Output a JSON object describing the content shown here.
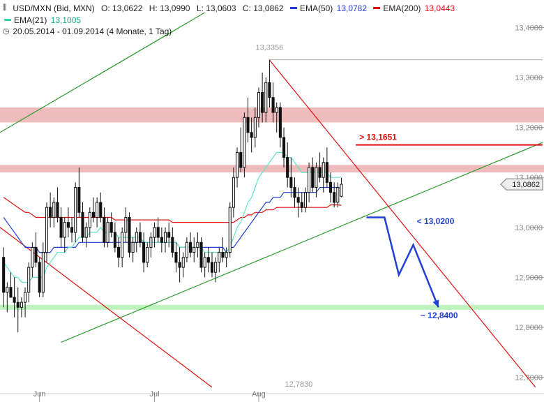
{
  "header": {
    "symbol": "USD/MXN (Bid, MXN)",
    "ohlc": {
      "o": "O: 13,0622",
      "h": "H: 13,0990",
      "l": "L: 13,0603",
      "c": "C: 13,0862"
    },
    "ema50": {
      "label": "EMA(50)",
      "value": "13,0782",
      "color": "#1f3fd6"
    },
    "ema200": {
      "label": "EMA(200)",
      "value": "13,0443",
      "color": "#e01010"
    },
    "ema21": {
      "label": "EMA(21)",
      "value": "13,1005",
      "color": "#33d6b0"
    },
    "range": "20.05.2014 - 01.09.2014 (4 Monate, 1 Tag)",
    "icons": [
      "candlestick-icon",
      "clock-icon"
    ]
  },
  "chart_data": {
    "type": "candlestick",
    "x_labels": [
      {
        "label": "Jun",
        "index": 10
      },
      {
        "label": "Jul",
        "index": 42
      },
      {
        "label": "Aug",
        "index": 71
      }
    ],
    "y_ticks": [
      "13,4000",
      "13,3000",
      "13,2000",
      "13,1000",
      "13,0000",
      "12,9000",
      "12,8000",
      "12,7000"
    ],
    "y_tick_values": [
      13.4,
      13.3,
      13.2,
      13.1,
      13.0,
      12.9,
      12.8,
      12.7
    ],
    "ylim": [
      12.67,
      13.43
    ],
    "xlim": [
      -1,
      150
    ],
    "candles": [
      [
        12.94,
        12.96,
        12.84,
        12.87
      ],
      [
        12.87,
        12.89,
        12.83,
        12.88
      ],
      [
        12.88,
        12.91,
        12.86,
        12.86
      ],
      [
        12.86,
        12.9,
        12.82,
        12.85
      ],
      [
        12.85,
        12.88,
        12.79,
        12.84
      ],
      [
        12.84,
        12.86,
        12.82,
        12.85
      ],
      [
        12.85,
        12.88,
        12.82,
        12.87
      ],
      [
        12.87,
        12.93,
        12.85,
        12.92
      ],
      [
        12.92,
        12.97,
        12.9,
        12.96
      ],
      [
        12.96,
        12.99,
        12.92,
        12.93
      ],
      [
        12.93,
        12.94,
        12.86,
        12.87
      ],
      [
        12.87,
        12.97,
        12.86,
        12.95
      ],
      [
        12.95,
        13.05,
        12.93,
        13.04
      ],
      [
        13.04,
        13.07,
        13.0,
        13.02
      ],
      [
        13.02,
        13.06,
        13.0,
        13.05
      ],
      [
        13.05,
        13.08,
        13.01,
        13.02
      ],
      [
        13.02,
        13.04,
        12.96,
        12.98
      ],
      [
        12.98,
        13.02,
        12.95,
        13.01
      ],
      [
        13.01,
        13.04,
        12.98,
        13.0
      ],
      [
        13.0,
        13.02,
        12.97,
        12.99
      ],
      [
        12.99,
        13.09,
        12.97,
        13.08
      ],
      [
        13.08,
        13.12,
        13.02,
        13.03
      ],
      [
        13.03,
        13.05,
        12.97,
        12.98
      ],
      [
        12.98,
        13.01,
        12.96,
        13.0
      ],
      [
        13.0,
        13.04,
        12.98,
        13.03
      ],
      [
        13.03,
        13.06,
        13.01,
        13.02
      ],
      [
        13.02,
        13.06,
        13.0,
        13.05
      ],
      [
        13.05,
        13.07,
        13.01,
        13.02
      ],
      [
        13.02,
        13.04,
        12.96,
        12.97
      ],
      [
        12.97,
        13.02,
        12.96,
        13.01
      ],
      [
        13.01,
        13.03,
        12.98,
        12.99
      ],
      [
        12.99,
        13.01,
        12.95,
        12.96
      ],
      [
        12.96,
        12.98,
        12.92,
        12.94
      ],
      [
        12.94,
        13.0,
        12.92,
        12.99
      ],
      [
        12.99,
        13.04,
        12.97,
        13.02
      ],
      [
        13.02,
        13.03,
        12.94,
        12.95
      ],
      [
        12.95,
        12.98,
        12.93,
        12.97
      ],
      [
        12.97,
        13.0,
        12.95,
        12.99
      ],
      [
        12.99,
        13.01,
        12.96,
        12.97
      ],
      [
        12.97,
        12.99,
        12.91,
        12.93
      ],
      [
        12.93,
        12.97,
        12.92,
        12.96
      ],
      [
        12.96,
        12.99,
        12.94,
        12.98
      ],
      [
        12.98,
        13.01,
        12.96,
        13.0
      ],
      [
        13.0,
        13.02,
        12.97,
        12.98
      ],
      [
        12.98,
        13.0,
        12.95,
        12.97
      ],
      [
        12.97,
        13.0,
        12.95,
        12.99
      ],
      [
        12.99,
        13.01,
        12.96,
        12.98
      ],
      [
        12.98,
        13.0,
        12.94,
        12.95
      ],
      [
        12.95,
        12.97,
        12.91,
        12.93
      ],
      [
        12.93,
        12.96,
        12.89,
        12.92
      ],
      [
        12.92,
        12.95,
        12.9,
        12.94
      ],
      [
        12.94,
        12.98,
        12.93,
        12.97
      ],
      [
        12.97,
        12.99,
        12.94,
        12.95
      ],
      [
        12.95,
        12.98,
        12.93,
        12.96
      ],
      [
        12.96,
        12.99,
        12.94,
        12.97
      ],
      [
        12.97,
        12.98,
        12.91,
        12.92
      ],
      [
        12.92,
        12.95,
        12.9,
        12.94
      ],
      [
        12.94,
        12.96,
        12.91,
        12.93
      ],
      [
        12.93,
        12.95,
        12.9,
        12.91
      ],
      [
        12.91,
        12.94,
        12.89,
        12.93
      ],
      [
        12.93,
        12.96,
        12.91,
        12.95
      ],
      [
        12.95,
        12.98,
        12.93,
        12.94
      ],
      [
        12.94,
        12.96,
        12.92,
        12.95
      ],
      [
        12.95,
        13.05,
        12.94,
        13.04
      ],
      [
        13.04,
        13.12,
        13.02,
        13.1
      ],
      [
        13.1,
        13.16,
        13.08,
        13.15
      ],
      [
        13.15,
        13.2,
        13.11,
        13.12
      ],
      [
        13.12,
        13.23,
        13.1,
        13.22
      ],
      [
        13.22,
        13.26,
        13.17,
        13.19
      ],
      [
        13.19,
        13.22,
        13.15,
        13.18
      ],
      [
        13.18,
        13.24,
        13.16,
        13.22
      ],
      [
        13.22,
        13.28,
        13.2,
        13.27
      ],
      [
        13.27,
        13.31,
        13.21,
        13.23
      ],
      [
        13.23,
        13.3,
        13.21,
        13.29
      ],
      [
        13.29,
        13.3356,
        13.24,
        13.26
      ],
      [
        13.26,
        13.29,
        13.21,
        13.23
      ],
      [
        13.23,
        13.25,
        13.19,
        13.24
      ],
      [
        13.24,
        13.25,
        13.16,
        13.18
      ],
      [
        13.18,
        13.2,
        13.12,
        13.14
      ],
      [
        13.14,
        13.17,
        13.08,
        13.1
      ],
      [
        13.1,
        13.14,
        13.06,
        13.08
      ],
      [
        13.08,
        13.1,
        13.04,
        13.06
      ],
      [
        13.06,
        13.08,
        13.02,
        13.05
      ],
      [
        13.05,
        13.07,
        13.03,
        13.04
      ],
      [
        13.04,
        13.08,
        13.03,
        13.07
      ],
      [
        13.07,
        13.13,
        13.05,
        13.12
      ],
      [
        13.12,
        13.14,
        13.07,
        13.08
      ],
      [
        13.08,
        13.13,
        13.06,
        13.12
      ],
      [
        13.12,
        13.15,
        13.09,
        13.1
      ],
      [
        13.1,
        13.14,
        13.07,
        13.13
      ],
      [
        13.13,
        13.16,
        13.08,
        13.09
      ],
      [
        13.09,
        13.11,
        13.05,
        13.07
      ],
      [
        13.07,
        13.09,
        13.04,
        13.05
      ],
      [
        13.05,
        13.09,
        13.04,
        13.08
      ],
      [
        13.0622,
        13.099,
        13.0603,
        13.0862
      ]
    ],
    "ema21": [
      12.93,
      12.92,
      12.91,
      12.9,
      12.9,
      12.89,
      12.89,
      12.89,
      12.9,
      12.9,
      12.9,
      12.9,
      12.92,
      12.93,
      12.94,
      12.95,
      12.95,
      12.95,
      12.96,
      12.96,
      12.97,
      12.98,
      12.98,
      12.98,
      12.99,
      12.99,
      12.99,
      13.0,
      12.99,
      12.99,
      12.99,
      12.99,
      12.98,
      12.98,
      12.98,
      12.98,
      12.98,
      12.98,
      12.98,
      12.97,
      12.97,
      12.97,
      12.97,
      12.97,
      12.97,
      12.97,
      12.97,
      12.97,
      12.97,
      12.96,
      12.96,
      12.96,
      12.96,
      12.96,
      12.96,
      12.96,
      12.95,
      12.95,
      12.95,
      12.95,
      12.95,
      12.95,
      12.95,
      12.96,
      12.98,
      13.0,
      13.01,
      13.03,
      13.05,
      13.06,
      13.08,
      13.1,
      13.11,
      13.12,
      13.13,
      13.14,
      13.15,
      13.15,
      13.15,
      13.14,
      13.14,
      13.13,
      13.12,
      13.11,
      13.11,
      13.11,
      13.11,
      13.11,
      13.11,
      13.11,
      13.11,
      13.1,
      13.1,
      13.1,
      13.1005
    ],
    "ema50": [
      13.02,
      13.01,
      13.0,
      12.99,
      12.98,
      12.97,
      12.96,
      12.96,
      12.96,
      12.96,
      12.95,
      12.95,
      12.95,
      12.95,
      12.96,
      12.96,
      12.96,
      12.96,
      12.96,
      12.96,
      12.96,
      12.97,
      12.97,
      12.97,
      12.97,
      12.97,
      12.97,
      12.97,
      12.97,
      12.97,
      12.97,
      12.97,
      12.97,
      12.97,
      12.97,
      12.97,
      12.97,
      12.97,
      12.97,
      12.97,
      12.97,
      12.97,
      12.97,
      12.97,
      12.97,
      12.97,
      12.97,
      12.97,
      12.97,
      12.96,
      12.96,
      12.96,
      12.96,
      12.96,
      12.96,
      12.96,
      12.96,
      12.96,
      12.96,
      12.96,
      12.96,
      12.96,
      12.95,
      12.96,
      12.96,
      12.97,
      12.98,
      12.99,
      13.0,
      13.01,
      13.02,
      13.03,
      13.04,
      13.05,
      13.05,
      13.06,
      13.06,
      13.06,
      13.07,
      13.07,
      13.07,
      13.07,
      13.07,
      13.07,
      13.07,
      13.07,
      13.07,
      13.07,
      13.08,
      13.08,
      13.08,
      13.08,
      13.08,
      13.08,
      13.0782
    ],
    "ema200": [
      13.06,
      13.055,
      13.05,
      13.045,
      13.04,
      13.035,
      13.03,
      13.03,
      13.025,
      13.02,
      13.02,
      13.02,
      13.02,
      13.02,
      13.02,
      13.02,
      13.02,
      13.02,
      13.02,
      13.02,
      13.02,
      13.02,
      13.02,
      13.02,
      13.02,
      13.02,
      13.02,
      13.02,
      13.02,
      13.02,
      13.02,
      13.015,
      13.015,
      13.015,
      13.015,
      13.015,
      13.015,
      13.015,
      13.015,
      13.015,
      13.015,
      13.015,
      13.015,
      13.015,
      13.015,
      13.015,
      13.015,
      13.01,
      13.01,
      13.01,
      13.01,
      13.01,
      13.01,
      13.01,
      13.01,
      13.01,
      13.01,
      13.01,
      13.01,
      13.01,
      13.01,
      13.01,
      13.01,
      13.01,
      13.01,
      13.015,
      13.02,
      13.02,
      13.025,
      13.025,
      13.03,
      13.03,
      13.03,
      13.035,
      13.035,
      13.035,
      13.04,
      13.04,
      13.04,
      13.04,
      13.04,
      13.04,
      13.04,
      13.04,
      13.04,
      13.04,
      13.04,
      13.04,
      13.04,
      13.04,
      13.04,
      13.045,
      13.045,
      13.045,
      13.0443
    ],
    "resistance_zones": [
      {
        "from": 13.21,
        "to": 13.24,
        "color": "#e8a5a5"
      },
      {
        "from": 13.11,
        "to": 13.125,
        "color": "#e8a5a5"
      },
      {
        "from": 12.835,
        "to": 12.845,
        "color": "#a8eea8"
      }
    ],
    "trendlines": [
      {
        "x1": -1,
        "y1": 13.19,
        "x2": 56,
        "y2": 13.43,
        "color": "#2a9a2a"
      },
      {
        "x1": 16,
        "y1": 12.77,
        "x2": 150,
        "y2": 13.17,
        "color": "#2a9a2a"
      },
      {
        "x1": -1,
        "y1": 13.0,
        "x2": 58,
        "y2": 12.68,
        "color": "#e01010"
      },
      {
        "x1": 74,
        "y1": 13.335,
        "x2": 148,
        "y2": 12.68,
        "color": "#e01010"
      }
    ],
    "level_line": {
      "value": 13.1651,
      "from": 98,
      "to": 150,
      "color": "#e01010"
    },
    "hline_top": {
      "value": 13.3356,
      "from": 74,
      "to": 150
    },
    "max_label": "13,3356",
    "min_label": "12,7830",
    "min_value": 12.783,
    "projection": [
      {
        "x": 101,
        "y": 13.02
      },
      {
        "x": 106,
        "y": 13.02
      },
      {
        "x": 110,
        "y": 12.905
      },
      {
        "x": 114,
        "y": 12.965
      },
      {
        "x": 121,
        "y": 12.84
      }
    ],
    "annotations": [
      {
        "text": "> 13,1651",
        "x": 99,
        "y": 13.175,
        "color": "#e01010"
      },
      {
        "text": "< 13,0200",
        "x": 115,
        "y": 13.007,
        "color": "#1f3fd6"
      },
      {
        "text": "~ 12,8400",
        "x": 116,
        "y": 12.818,
        "color": "#1f3fd6"
      }
    ],
    "last_price": {
      "label": "13,0862",
      "value": 13.0862
    }
  }
}
